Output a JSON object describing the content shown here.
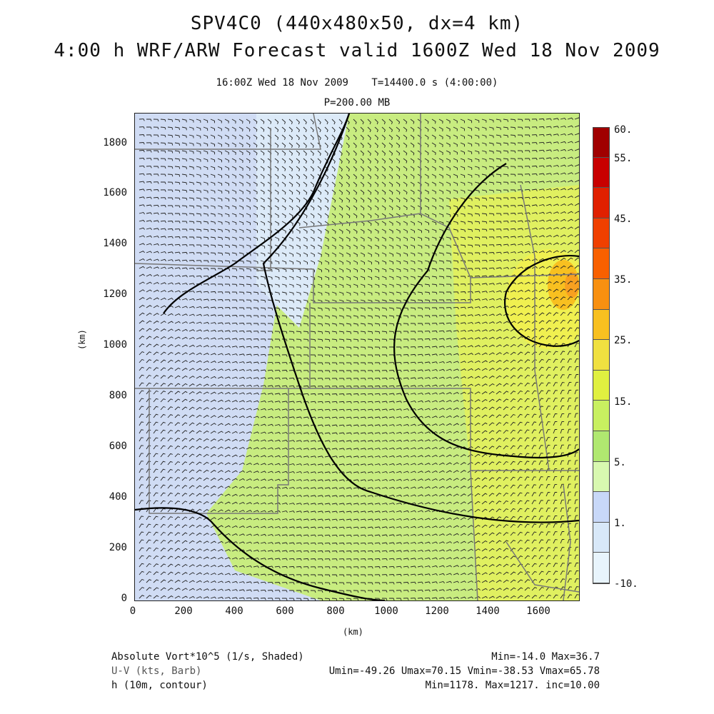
{
  "header": {
    "title_line1": "SPV4C0 (440x480x50, dx=4 km)",
    "title_line2": "4:00 h WRF/ARW Forecast valid 1600Z Wed 18 Nov 2009",
    "valid_time": "16:00Z Wed 18 Nov 2009",
    "sim_time": "T=14400.0 s (4:00:00)",
    "level": "P=200.00 MB"
  },
  "axes": {
    "x_label": "(km)",
    "y_label": "(km)",
    "x_ticks": [
      "0",
      "200",
      "400",
      "600",
      "800",
      "1000",
      "1200",
      "1400",
      "1600"
    ],
    "y_ticks": [
      "1800",
      "1600",
      "1400",
      "1200",
      "1000",
      "800",
      "600",
      "400",
      "200",
      "0"
    ]
  },
  "colorbar": {
    "labels": [
      "60.",
      "55.",
      "45.",
      "35.",
      "25.",
      "15.",
      "5.",
      "1.",
      "-10."
    ],
    "colors": [
      "#a00000",
      "#c80000",
      "#e02000",
      "#f04000",
      "#f86000",
      "#f89010",
      "#f8c020",
      "#f0e040",
      "#e0f040",
      "#c8f060",
      "#b0e870",
      "#d8f8b0",
      "#c8d8f8",
      "#d8e8f8",
      "#e8f4fc"
    ]
  },
  "footer": {
    "field1_label": "Absolute Vort*10^5 (1/s, Shaded)",
    "field1_stats": "Min=-14.0 Max=36.7",
    "field2_label": "U-V (kts, Barb)",
    "field2_stats": "Umin=-49.26 Umax=70.15 Vmin=-38.53 Vmax=65.78",
    "field3_label": "h (10m, contour)",
    "field3_stats": "Min=1178. Max=1217. inc=10.00"
  },
  "map": {
    "shade_green": "#c8ec80",
    "shade_blue": "#d0dcf4",
    "shade_yellow": "#f0f050",
    "shade_orange": "#f8a020",
    "contour_color": "#000000",
    "border_color": "#777777",
    "barb_color": "#222222"
  }
}
